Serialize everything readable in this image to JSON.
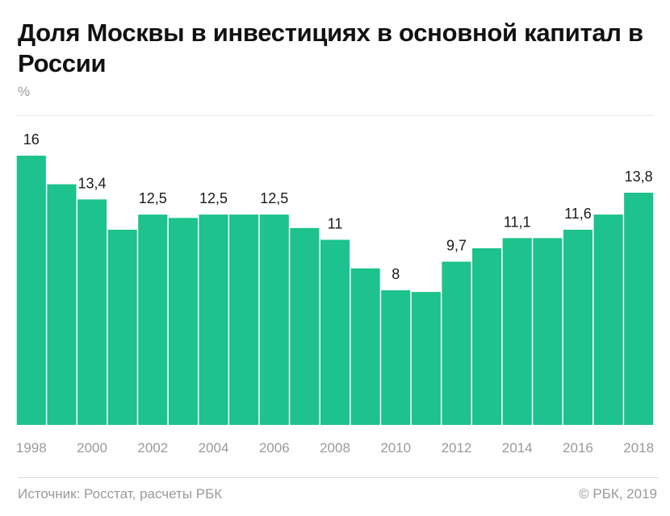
{
  "title": "Доля Москвы в инвестициях в основной капитал в России",
  "unit": "%",
  "source": "Источник: Росстат, расчеты РБК",
  "copyright": "© РБК, 2019",
  "colors": {
    "bar": "#1dc28c",
    "gridline": "#e4e4e4",
    "axis_label": "#9a9a9a",
    "value_label": "#1a1a1a"
  },
  "chart_data": {
    "type": "bar",
    "categories": [
      "1998",
      "1999",
      "2000",
      "2001",
      "2002",
      "2003",
      "2004",
      "2005",
      "2006",
      "2007",
      "2008",
      "2009",
      "2010",
      "2011",
      "2012",
      "2013",
      "2014",
      "2015",
      "2016",
      "2017",
      "2018"
    ],
    "values": [
      16,
      14.3,
      13.4,
      11.6,
      12.5,
      12.3,
      12.5,
      12.5,
      12.5,
      11.7,
      11,
      9.3,
      8,
      7.9,
      9.7,
      10.5,
      11.1,
      11.1,
      11.6,
      12.5,
      13.8
    ],
    "labels": [
      "16",
      "",
      "13,4",
      "",
      "12,5",
      "",
      "12,5",
      "",
      "12,5",
      "",
      "11",
      "",
      "8",
      "",
      "9,7",
      "",
      "11,1",
      "",
      "11,6",
      "",
      "13,8"
    ],
    "tick_labels": [
      "1998",
      "",
      "2000",
      "",
      "2002",
      "",
      "2004",
      "",
      "2006",
      "",
      "2008",
      "",
      "2010",
      "",
      "2012",
      "",
      "2014",
      "",
      "2016",
      "",
      "2018"
    ],
    "ylim": [
      0,
      18.4
    ],
    "grid": true
  }
}
